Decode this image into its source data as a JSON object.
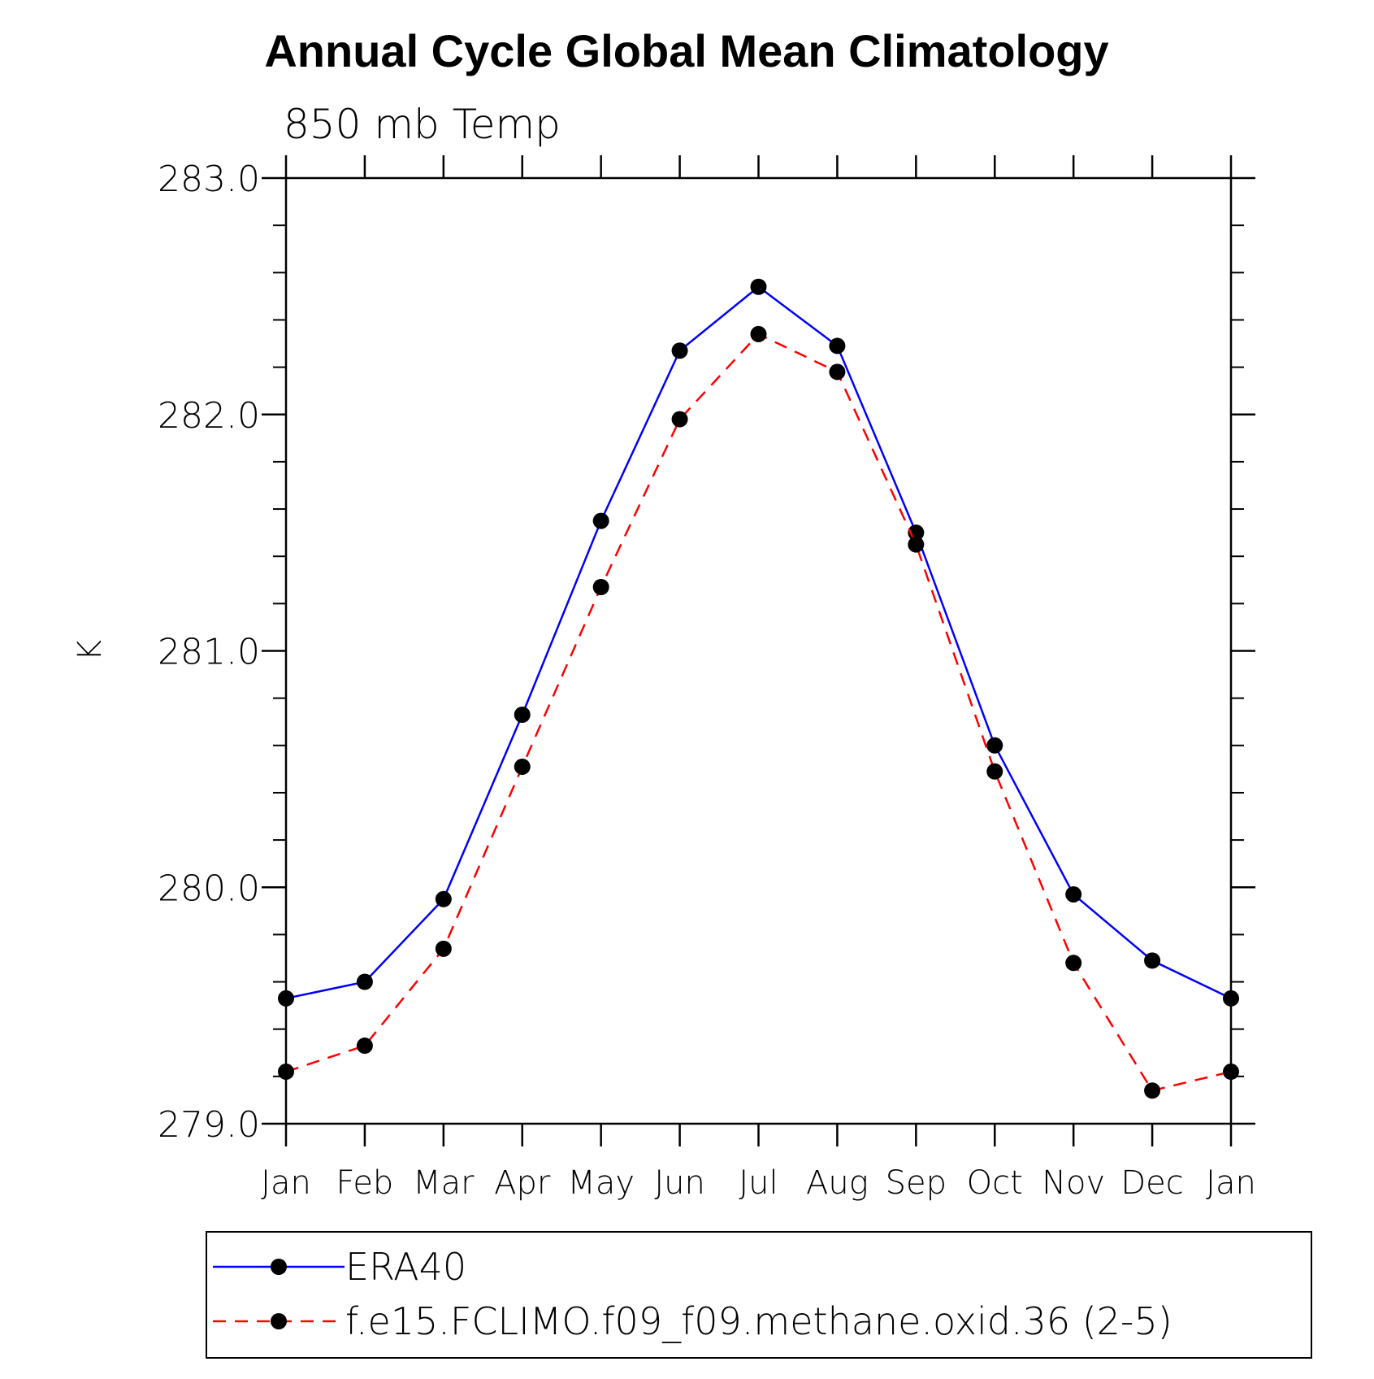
{
  "chart_data": {
    "type": "line",
    "title": "Annual Cycle Global Mean Climatology",
    "subtitle": "850 mb Temp",
    "xlabel": "",
    "ylabel": "K",
    "categories": [
      "Jan",
      "Feb",
      "Mar",
      "Apr",
      "May",
      "Jun",
      "Jul",
      "Aug",
      "Sep",
      "Oct",
      "Nov",
      "Dec",
      "Jan"
    ],
    "ylim": [
      279.0,
      283.0
    ],
    "yticks": [
      "279.0",
      "280.0",
      "281.0",
      "282.0",
      "283.0"
    ],
    "grid": false,
    "legend_position": "bottom",
    "series": [
      {
        "name": "ERA40",
        "color": "#0000ff",
        "style": "solid",
        "values": [
          279.53,
          279.6,
          279.95,
          280.73,
          281.55,
          282.27,
          282.54,
          282.29,
          281.5,
          280.6,
          279.97,
          279.69,
          279.53
        ]
      },
      {
        "name": "f.e15.FCLIMO.f09_f09.methane.oxid.36 (2-5)",
        "color": "#ff0000",
        "style": "dashed",
        "values": [
          279.22,
          279.33,
          279.74,
          280.51,
          281.27,
          281.98,
          282.34,
          282.18,
          281.45,
          280.49,
          279.68,
          279.14,
          279.22
        ]
      }
    ]
  }
}
